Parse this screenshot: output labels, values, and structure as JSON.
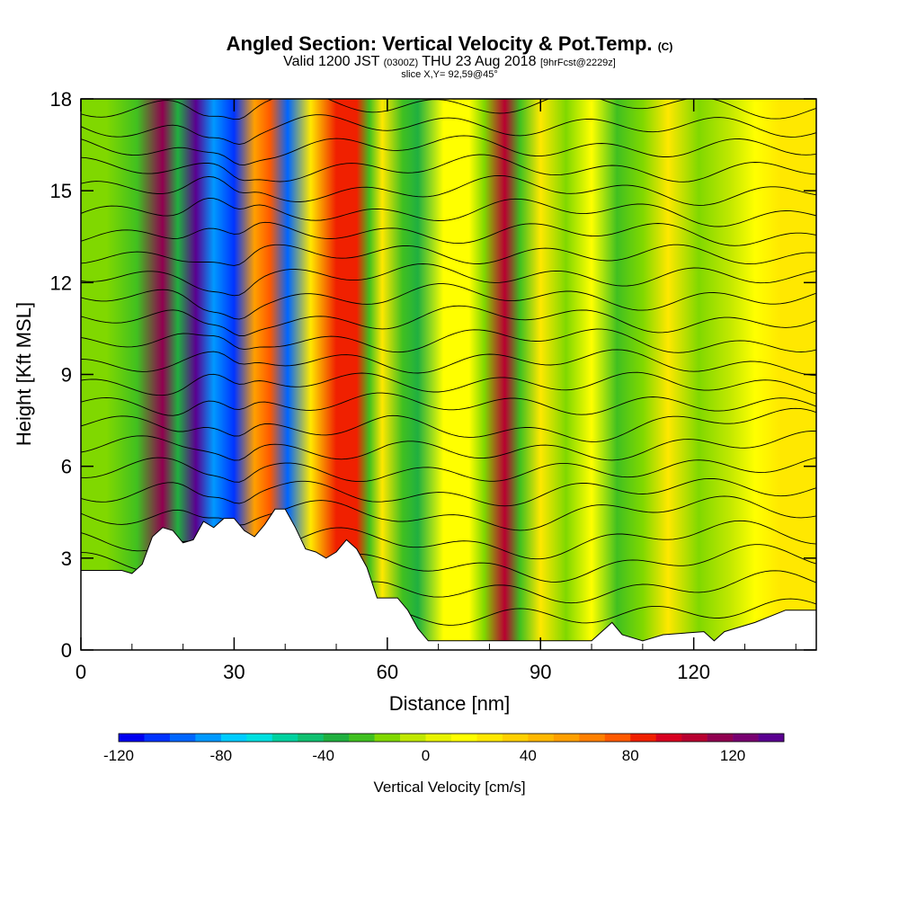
{
  "header": {
    "title_main": "Angled Section: Vertical Velocity & Pot.Temp.",
    "title_unit": "(C)",
    "valid_prefix": "Valid 1200 JST",
    "valid_utc": "(0300Z)",
    "valid_date": "THU 23 Aug 2018",
    "forecast": "[9hrFcst@2229z]",
    "slice": "slice X,Y= 92,59@45°"
  },
  "chart_data": {
    "type": "heatmap",
    "xlabel": "Distance [nm]",
    "ylabel": "Height [Kft MSL]",
    "xlim": [
      0,
      144
    ],
    "ylim": [
      0,
      18
    ],
    "x_ticks": [
      0,
      30,
      60,
      90,
      120
    ],
    "y_ticks": [
      0,
      3,
      6,
      9,
      12,
      15,
      18
    ],
    "colorbar": {
      "label": "Vertical Velocity [cm/s]",
      "range": [
        -120,
        140
      ],
      "ticks": [
        -120,
        -80,
        -40,
        0,
        40,
        80,
        120
      ],
      "colors": [
        "#0000f0",
        "#0033ff",
        "#0066ff",
        "#0099ff",
        "#00ccff",
        "#00e0e0",
        "#00d2a0",
        "#10c070",
        "#20b040",
        "#40c020",
        "#80d800",
        "#c0e800",
        "#e8f400",
        "#ffff00",
        "#ffe800",
        "#ffd000",
        "#ffb800",
        "#ffa000",
        "#ff8000",
        "#ff5a00",
        "#f02000",
        "#d80020",
        "#b80030",
        "#900050",
        "#780070",
        "#5a0090"
      ]
    },
    "velocity_bands": [
      {
        "x": 5,
        "v": -20
      },
      {
        "x": 11,
        "v": -30
      },
      {
        "x": 16,
        "v": 110
      },
      {
        "x": 19,
        "v": -40
      },
      {
        "x": 22.5,
        "v": 130
      },
      {
        "x": 26,
        "v": -90
      },
      {
        "x": 30,
        "v": -110
      },
      {
        "x": 34,
        "v": 50
      },
      {
        "x": 37,
        "v": 70
      },
      {
        "x": 40.5,
        "v": -100
      },
      {
        "x": 45,
        "v": 20
      },
      {
        "x": 50,
        "v": 85
      },
      {
        "x": 54,
        "v": 80
      },
      {
        "x": 56.5,
        "v": -30
      },
      {
        "x": 59,
        "v": 20
      },
      {
        "x": 63,
        "v": -25
      },
      {
        "x": 66,
        "v": -35
      },
      {
        "x": 71,
        "v": 15
      },
      {
        "x": 76,
        "v": 10
      },
      {
        "x": 79,
        "v": -20
      },
      {
        "x": 83,
        "v": 100
      },
      {
        "x": 86,
        "v": -30
      },
      {
        "x": 90,
        "v": 25
      },
      {
        "x": 95,
        "v": -15
      },
      {
        "x": 100,
        "v": 15
      },
      {
        "x": 105,
        "v": -30
      },
      {
        "x": 110,
        "v": -15
      },
      {
        "x": 115,
        "v": 20
      },
      {
        "x": 121,
        "v": -15
      },
      {
        "x": 127,
        "v": -10
      },
      {
        "x": 132,
        "v": 15
      },
      {
        "x": 137,
        "v": 20
      },
      {
        "x": 142,
        "v": 25
      }
    ],
    "terrain": [
      [
        0,
        2.6
      ],
      [
        8,
        2.6
      ],
      [
        10,
        2.5
      ],
      [
        12,
        2.8
      ],
      [
        14,
        3.7
      ],
      [
        16,
        4.0
      ],
      [
        18,
        3.9
      ],
      [
        20,
        3.5
      ],
      [
        22,
        3.6
      ],
      [
        24,
        4.2
      ],
      [
        26,
        4.0
      ],
      [
        28,
        4.3
      ],
      [
        30,
        4.3
      ],
      [
        32,
        3.9
      ],
      [
        34,
        3.7
      ],
      [
        36,
        4.1
      ],
      [
        38,
        4.6
      ],
      [
        40,
        4.6
      ],
      [
        42,
        4.0
      ],
      [
        44,
        3.3
      ],
      [
        46,
        3.2
      ],
      [
        48,
        3.0
      ],
      [
        50,
        3.2
      ],
      [
        52,
        3.6
      ],
      [
        54,
        3.3
      ],
      [
        56,
        2.7
      ],
      [
        58,
        1.7
      ],
      [
        62,
        1.7
      ],
      [
        64,
        1.3
      ],
      [
        66,
        0.7
      ],
      [
        68,
        0.3
      ],
      [
        100,
        0.3
      ],
      [
        104,
        0.9
      ],
      [
        106,
        0.5
      ],
      [
        110,
        0.3
      ],
      [
        114,
        0.5
      ],
      [
        122,
        0.6
      ],
      [
        124,
        0.3
      ],
      [
        126,
        0.6
      ],
      [
        132,
        0.9
      ],
      [
        138,
        1.3
      ],
      [
        144,
        1.3
      ]
    ],
    "isentrope_levels": [
      1.2,
      2.0,
      2.8,
      3.6,
      4.5,
      5.2,
      5.9,
      6.6,
      7.3,
      8.0,
      8.7,
      9.4,
      10.1,
      10.8,
      11.5,
      12.2,
      12.9,
      13.6,
      14.3,
      15.0,
      15.7,
      16.4,
      17.1,
      17.8
    ]
  },
  "footer": {
    "colorbar_label": "Vertical Velocity [cm/s]"
  }
}
